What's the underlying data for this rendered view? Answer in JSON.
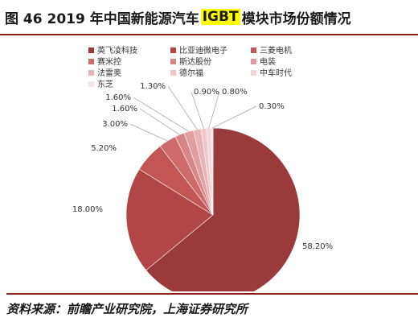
{
  "title": {
    "prefix": "图 46  2019 年中国新能源汽车 ",
    "highlight": "IGBT",
    "suffix": " 模块市场份额情况"
  },
  "chart_data": {
    "type": "pie",
    "title": "",
    "slices": [
      {
        "name": "英飞凌科技",
        "value": 58.2,
        "label": "58.20%",
        "color": "#9b3a3a"
      },
      {
        "name": "比亚迪微电子",
        "value": 18.0,
        "label": "18.00%",
        "color": "#b24646"
      },
      {
        "name": "三菱电机",
        "value": 5.2,
        "label": "5.20%",
        "color": "#c45555"
      },
      {
        "name": "赛米控",
        "value": 3.0,
        "label": "3.00%",
        "color": "#cf6a6a"
      },
      {
        "name": "斯达股份",
        "value": 1.6,
        "label": "1.60%",
        "color": "#d88585"
      },
      {
        "name": "电装",
        "value": 1.6,
        "label": "1.60%",
        "color": "#e09e9e"
      },
      {
        "name": "法雷奥",
        "value": 1.3,
        "label": "1.30%",
        "color": "#e8b4b4"
      },
      {
        "name": "德尔福",
        "value": 0.9,
        "label": "0.90%",
        "color": "#efc7c7"
      },
      {
        "name": "中车时代",
        "value": 0.8,
        "label": "0.80%",
        "color": "#f4d6d6"
      },
      {
        "name": "东芝",
        "value": 0.3,
        "label": "0.30%",
        "color": "#f8e4e4"
      }
    ],
    "legend_position": "top-left"
  },
  "source": "资料来源：前瞻产业研究院，上海证券研究所"
}
